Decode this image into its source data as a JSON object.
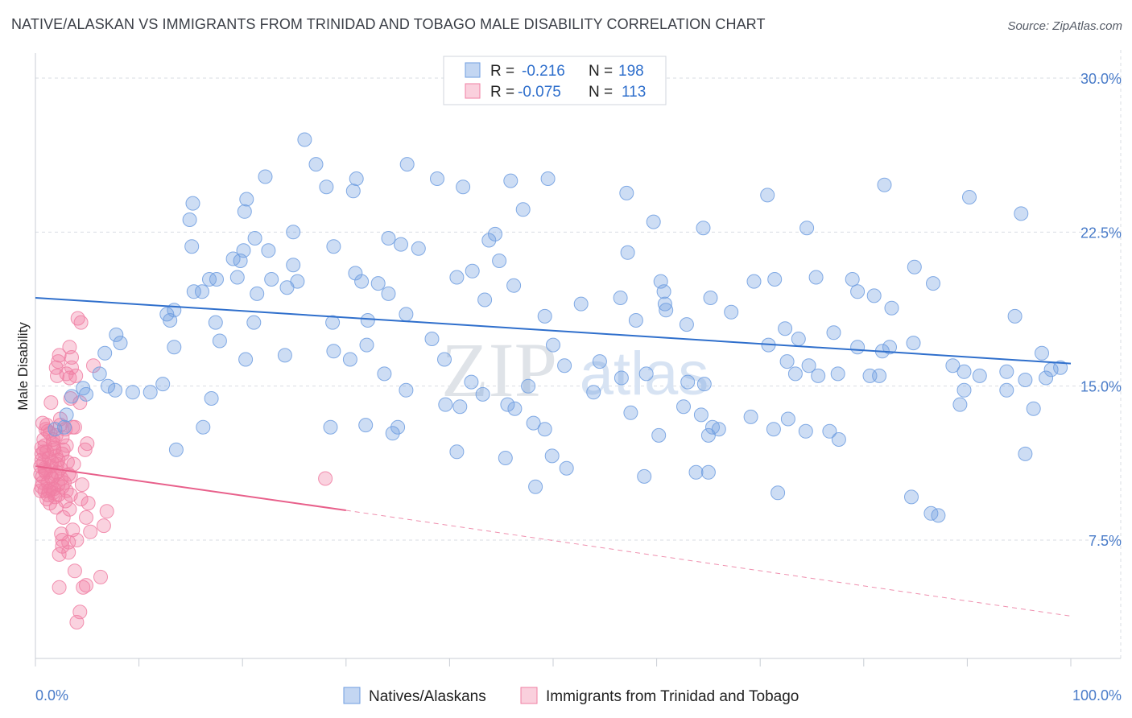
{
  "title": "NATIVE/ALASKAN VS IMMIGRANTS FROM TRINIDAD AND TOBAGO MALE DISABILITY CORRELATION CHART",
  "source": "Source: ZipAtlas.com",
  "watermark": {
    "zip": "ZIP",
    "atlas": "atlas"
  },
  "colors": {
    "blue": "#6f9ee0",
    "blue_line": "#2f6fcc",
    "pink": "#f07fa3",
    "pink_line": "#e8608b",
    "grid": "#d9dde3",
    "tick_text": "#4a7cc9"
  },
  "legend": {
    "rows": [
      {
        "r_label": "R =",
        "r_value": "-0.216",
        "n_label": "N =",
        "n_value": "198"
      },
      {
        "r_label": "R =",
        "r_value": "-0.075",
        "n_label": "N =",
        "n_value": "113"
      }
    ]
  },
  "bottom_legend": [
    "Natives/Alaskans",
    "Immigrants from Trinidad and Tobago"
  ],
  "chart_data": {
    "type": "scatter",
    "title": "NATIVE/ALASKAN VS IMMIGRANTS FROM TRINIDAD AND TOBAGO MALE DISABILITY CORRELATION CHART",
    "xlabel": "",
    "ylabel": "Male Disability",
    "x_tick_labels": [
      "0.0%",
      "100.0%"
    ],
    "y_tick_labels": [
      "7.5%",
      "15.0%",
      "22.5%",
      "30.0%"
    ],
    "y_ticks": [
      7.5,
      15.0,
      22.5,
      30.0
    ],
    "xlim": [
      0,
      100
    ],
    "ylim": [
      0,
      31.5
    ],
    "grid": true,
    "legend_placement": "top-center",
    "series": [
      {
        "name": "Natives/Alaskans",
        "color": "#6f9ee0",
        "trend": {
          "x0": 0,
          "y0": 19.3,
          "x1": 100,
          "y1": 16.1
        },
        "points": [
          [
            40.6,
            29.3
          ],
          [
            26.0,
            27.0
          ],
          [
            27.1,
            25.8
          ],
          [
            35.9,
            25.8
          ],
          [
            22.2,
            25.2
          ],
          [
            31.0,
            25.1
          ],
          [
            30.7,
            24.5
          ],
          [
            28.1,
            24.7
          ],
          [
            20.4,
            24.1
          ],
          [
            15.2,
            23.9
          ],
          [
            14.9,
            23.1
          ],
          [
            20.2,
            23.5
          ],
          [
            41.3,
            24.7
          ],
          [
            45.9,
            25.0
          ],
          [
            38.8,
            25.1
          ],
          [
            49.5,
            25.1
          ],
          [
            57.1,
            24.4
          ],
          [
            70.7,
            24.3
          ],
          [
            82.0,
            24.8
          ],
          [
            90.2,
            24.2
          ],
          [
            95.2,
            23.4
          ],
          [
            47.1,
            23.6
          ],
          [
            59.7,
            23.0
          ],
          [
            64.5,
            22.7
          ],
          [
            74.5,
            22.7
          ],
          [
            15.1,
            21.8
          ],
          [
            20.1,
            21.6
          ],
          [
            21.2,
            22.2
          ],
          [
            22.5,
            21.6
          ],
          [
            24.9,
            22.5
          ],
          [
            28.8,
            21.8
          ],
          [
            34.1,
            22.2
          ],
          [
            35.3,
            21.9
          ],
          [
            37.0,
            21.7
          ],
          [
            43.8,
            22.1
          ],
          [
            44.4,
            22.4
          ],
          [
            57.2,
            21.5
          ],
          [
            19.1,
            21.2
          ],
          [
            19.8,
            21.1
          ],
          [
            24.9,
            20.9
          ],
          [
            17.5,
            20.2
          ],
          [
            16.8,
            20.2
          ],
          [
            22.8,
            20.2
          ],
          [
            25.3,
            20.1
          ],
          [
            19.5,
            20.3
          ],
          [
            30.9,
            20.5
          ],
          [
            33.1,
            20.0
          ],
          [
            31.5,
            20.1
          ],
          [
            40.7,
            20.3
          ],
          [
            42.2,
            20.6
          ],
          [
            44.8,
            21.1
          ],
          [
            60.4,
            20.1
          ],
          [
            71.4,
            20.2
          ],
          [
            69.4,
            20.1
          ],
          [
            75.4,
            20.3
          ],
          [
            78.9,
            20.2
          ],
          [
            84.9,
            20.8
          ],
          [
            86.7,
            20.0
          ],
          [
            15.3,
            19.6
          ],
          [
            24.3,
            19.8
          ],
          [
            21.4,
            19.5
          ],
          [
            16.1,
            19.6
          ],
          [
            34.1,
            19.5
          ],
          [
            43.4,
            19.2
          ],
          [
            46.2,
            19.9
          ],
          [
            52.7,
            19.0
          ],
          [
            56.5,
            19.3
          ],
          [
            60.8,
            19.0
          ],
          [
            60.7,
            19.6
          ],
          [
            60.9,
            18.7
          ],
          [
            65.2,
            19.3
          ],
          [
            67.2,
            18.6
          ],
          [
            79.4,
            19.6
          ],
          [
            81.0,
            19.4
          ],
          [
            82.7,
            18.8
          ],
          [
            94.6,
            18.4
          ],
          [
            13.0,
            18.2
          ],
          [
            12.7,
            18.5
          ],
          [
            13.4,
            18.7
          ],
          [
            17.4,
            18.1
          ],
          [
            21.1,
            18.1
          ],
          [
            28.7,
            18.1
          ],
          [
            32.1,
            18.2
          ],
          [
            35.8,
            18.5
          ],
          [
            58.0,
            18.2
          ],
          [
            49.2,
            18.4
          ],
          [
            62.9,
            18.0
          ],
          [
            72.4,
            17.8
          ],
          [
            73.7,
            17.3
          ],
          [
            77.1,
            17.6
          ],
          [
            84.8,
            17.1
          ],
          [
            8.2,
            17.1
          ],
          [
            7.8,
            17.5
          ],
          [
            6.7,
            16.6
          ],
          [
            17.8,
            17.2
          ],
          [
            13.4,
            16.9
          ],
          [
            20.3,
            16.3
          ],
          [
            24.1,
            16.5
          ],
          [
            28.8,
            16.7
          ],
          [
            30.4,
            16.3
          ],
          [
            32.0,
            17.0
          ],
          [
            39.5,
            16.3
          ],
          [
            38.3,
            17.3
          ],
          [
            50.0,
            17.0
          ],
          [
            51.1,
            16.0
          ],
          [
            54.5,
            16.2
          ],
          [
            63.0,
            15.2
          ],
          [
            70.8,
            17.0
          ],
          [
            72.6,
            16.2
          ],
          [
            74.7,
            16.0
          ],
          [
            79.4,
            16.9
          ],
          [
            82.5,
            16.9
          ],
          [
            81.8,
            16.7
          ],
          [
            88.6,
            16.0
          ],
          [
            89.7,
            15.7
          ],
          [
            91.2,
            15.5
          ],
          [
            93.8,
            15.7
          ],
          [
            97.2,
            16.6
          ],
          [
            99.0,
            15.9
          ],
          [
            6.2,
            15.6
          ],
          [
            7.0,
            15.0
          ],
          [
            4.6,
            14.9
          ],
          [
            7.7,
            14.8
          ],
          [
            9.4,
            14.7
          ],
          [
            3.5,
            14.5
          ],
          [
            4.9,
            14.6
          ],
          [
            33.7,
            15.6
          ],
          [
            35.8,
            14.8
          ],
          [
            42.1,
            15.2
          ],
          [
            47.6,
            15.0
          ],
          [
            56.6,
            15.4
          ],
          [
            59.0,
            15.6
          ],
          [
            64.6,
            15.1
          ],
          [
            73.4,
            15.6
          ],
          [
            75.6,
            15.5
          ],
          [
            77.5,
            15.6
          ],
          [
            80.6,
            15.5
          ],
          [
            81.5,
            15.5
          ],
          [
            89.7,
            14.8
          ],
          [
            93.8,
            14.8
          ],
          [
            95.6,
            15.3
          ],
          [
            97.6,
            15.4
          ],
          [
            98.1,
            15.8
          ],
          [
            3.0,
            13.6
          ],
          [
            2.8,
            13.0
          ],
          [
            1.9,
            12.9
          ],
          [
            17.0,
            14.4
          ],
          [
            28.5,
            13.0
          ],
          [
            39.6,
            14.1
          ],
          [
            31.9,
            13.1
          ],
          [
            34.5,
            12.7
          ],
          [
            35.0,
            13.0
          ],
          [
            41.0,
            14.0
          ],
          [
            43.2,
            14.6
          ],
          [
            45.6,
            14.1
          ],
          [
            46.3,
            13.9
          ],
          [
            49.2,
            12.9
          ],
          [
            48.1,
            13.2
          ],
          [
            53.9,
            14.7
          ],
          [
            57.5,
            13.7
          ],
          [
            62.6,
            14.0
          ],
          [
            64.3,
            13.6
          ],
          [
            65.4,
            13.0
          ],
          [
            66.0,
            12.9
          ],
          [
            69.1,
            13.5
          ],
          [
            71.3,
            12.9
          ],
          [
            72.7,
            13.4
          ],
          [
            74.4,
            12.8
          ],
          [
            76.7,
            12.8
          ],
          [
            77.6,
            12.4
          ],
          [
            89.3,
            14.1
          ],
          [
            96.4,
            13.9
          ],
          [
            16.2,
            13.0
          ],
          [
            60.2,
            12.6
          ],
          [
            65.0,
            12.6
          ],
          [
            40.7,
            11.8
          ],
          [
            45.4,
            11.5
          ],
          [
            49.9,
            11.6
          ],
          [
            51.3,
            11.0
          ],
          [
            58.8,
            10.6
          ],
          [
            63.8,
            10.8
          ],
          [
            65.0,
            10.8
          ],
          [
            71.7,
            9.8
          ],
          [
            84.6,
            9.6
          ],
          [
            87.2,
            8.7
          ],
          [
            86.5,
            8.8
          ],
          [
            48.3,
            10.1
          ],
          [
            95.6,
            11.7
          ],
          [
            13.6,
            11.9
          ],
          [
            12.3,
            15.1
          ],
          [
            11.1,
            14.7
          ]
        ]
      },
      {
        "name": "Immigrants from Trinidad and Tobago",
        "color": "#f07fa3",
        "trend": {
          "x0": 0,
          "y0": 11.1,
          "x1": 30,
          "y1": 8.95,
          "dash_to_x": 100,
          "dash_to_y": 3.8
        },
        "points": [
          [
            4.1,
            18.3
          ],
          [
            4.4,
            18.1
          ],
          [
            3.3,
            16.9
          ],
          [
            2.3,
            16.5
          ],
          [
            3.5,
            16.4
          ],
          [
            2.0,
            15.9
          ],
          [
            3.5,
            15.9
          ],
          [
            5.6,
            16.0
          ],
          [
            2.1,
            15.5
          ],
          [
            3.9,
            15.5
          ],
          [
            1.5,
            14.2
          ],
          [
            3.4,
            14.4
          ],
          [
            4.3,
            14.2
          ],
          [
            2.4,
            13.4
          ],
          [
            3.6,
            13.0
          ],
          [
            1.2,
            12.8
          ],
          [
            1.7,
            12.4
          ],
          [
            2.6,
            12.5
          ],
          [
            0.7,
            13.2
          ],
          [
            0.9,
            12.1
          ],
          [
            1.8,
            12.0
          ],
          [
            2.7,
            11.9
          ],
          [
            1.1,
            11.8
          ],
          [
            0.6,
            11.7
          ],
          [
            1.3,
            11.5
          ],
          [
            0.6,
            11.4
          ],
          [
            2.0,
            11.6
          ],
          [
            0.8,
            11.3
          ],
          [
            1.5,
            11.1
          ],
          [
            3.1,
            11.3
          ],
          [
            0.5,
            11.1
          ],
          [
            0.9,
            10.9
          ],
          [
            2.1,
            10.8
          ],
          [
            3.2,
            10.7
          ],
          [
            1.9,
            10.7
          ],
          [
            0.7,
            10.6
          ],
          [
            1.6,
            10.5
          ],
          [
            2.5,
            10.5
          ],
          [
            3.4,
            10.6
          ],
          [
            1.2,
            10.3
          ],
          [
            2.2,
            10.2
          ],
          [
            0.6,
            10.1
          ],
          [
            1.3,
            9.9
          ],
          [
            2.6,
            10.1
          ],
          [
            0.5,
            9.9
          ],
          [
            1.7,
            9.8
          ],
          [
            3.0,
            9.9
          ],
          [
            4.5,
            10.2
          ],
          [
            2.2,
            9.7
          ],
          [
            1.1,
            9.5
          ],
          [
            2.9,
            9.4
          ],
          [
            1.4,
            9.3
          ],
          [
            2.0,
            9.1
          ],
          [
            3.3,
            9.0
          ],
          [
            2.7,
            8.6
          ],
          [
            4.4,
            9.5
          ],
          [
            5.1,
            9.3
          ],
          [
            3.6,
            8.0
          ],
          [
            4.9,
            8.6
          ],
          [
            2.5,
            7.8
          ],
          [
            4.0,
            7.5
          ],
          [
            2.6,
            7.2
          ],
          [
            2.3,
            6.8
          ],
          [
            3.2,
            6.9
          ],
          [
            5.3,
            7.9
          ],
          [
            6.6,
            8.2
          ],
          [
            6.9,
            8.9
          ],
          [
            3.8,
            6.0
          ],
          [
            6.3,
            5.7
          ],
          [
            4.6,
            5.2
          ],
          [
            4.9,
            5.3
          ],
          [
            2.3,
            5.2
          ],
          [
            4.3,
            4.0
          ],
          [
            4.0,
            3.5
          ],
          [
            28.0,
            10.5
          ],
          [
            1.0,
            10.8
          ],
          [
            1.8,
            10.0
          ],
          [
            0.8,
            12.4
          ],
          [
            2.4,
            11.0
          ],
          [
            3.0,
            12.1
          ],
          [
            1.4,
            12.7
          ],
          [
            0.9,
            11.0
          ],
          [
            2.0,
            12.6
          ],
          [
            1.6,
            11.3
          ],
          [
            0.7,
            10.3
          ],
          [
            2.8,
            10.3
          ],
          [
            1.2,
            9.7
          ],
          [
            3.7,
            11.2
          ],
          [
            2.2,
            11.4
          ],
          [
            0.8,
            11.8
          ],
          [
            1.5,
            10.6
          ],
          [
            2.6,
            11.7
          ],
          [
            0.6,
            12.0
          ],
          [
            1.9,
            9.6
          ],
          [
            3.4,
            9.7
          ],
          [
            2.4,
            13.1
          ],
          [
            1.1,
            13.1
          ],
          [
            0.5,
            10.7
          ],
          [
            1.8,
            11.9
          ],
          [
            2.9,
            12.9
          ],
          [
            4.8,
            11.9
          ],
          [
            5.0,
            12.2
          ],
          [
            3.8,
            13.0
          ],
          [
            3.0,
            15.6
          ],
          [
            2.2,
            16.2
          ],
          [
            3.3,
            15.4
          ],
          [
            1.0,
            12.9
          ],
          [
            2.1,
            11.2
          ],
          [
            1.5,
            10.0
          ],
          [
            0.9,
            9.9
          ],
          [
            2.6,
            7.5
          ],
          [
            3.2,
            7.4
          ],
          [
            1.7,
            12.2
          ]
        ]
      }
    ]
  }
}
